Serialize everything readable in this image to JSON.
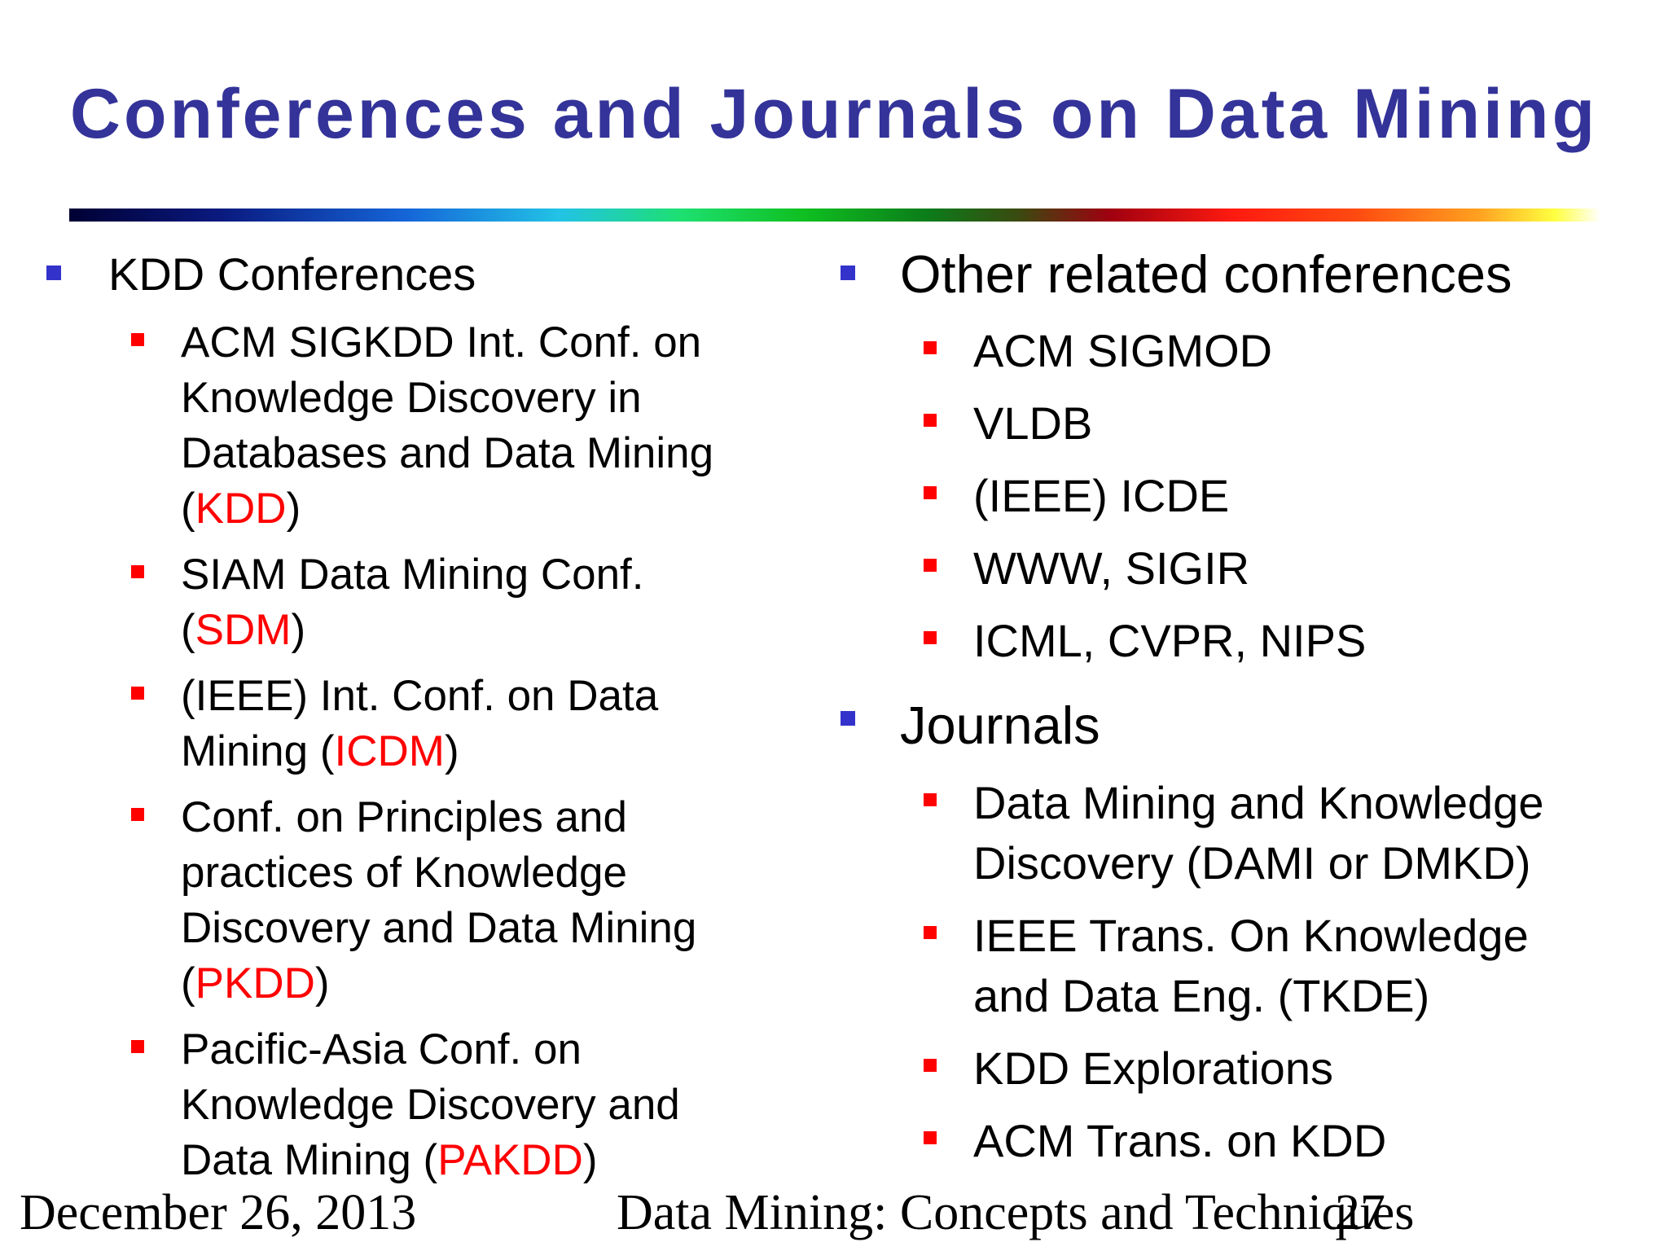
{
  "title": "Conferences and Journals on Data Mining",
  "left": {
    "heading": "KDD Conferences",
    "items": [
      {
        "text": "ACM SIGKDD Int. Conf. on Knowledge Discovery in Databases and Data Mining (",
        "acronym": "KDD",
        "after": ")"
      },
      {
        "text": "SIAM Data Mining Conf. (",
        "acronym": "SDM",
        "after": ")"
      },
      {
        "text": "(IEEE) Int. Conf. on Data Mining (",
        "acronym": "ICDM",
        "after": ")"
      },
      {
        "text": "Conf. on Principles and practices of Knowledge Discovery and Data Mining (",
        "acronym": "PKDD",
        "after": ")"
      },
      {
        "text": "Pacific-Asia Conf. on Knowledge Discovery and Data Mining (",
        "acronym": "PAKDD",
        "after": ")"
      }
    ]
  },
  "right": {
    "sections": [
      {
        "heading": "Other related conferences",
        "items": [
          "ACM SIGMOD",
          "VLDB",
          "(IEEE) ICDE",
          "WWW, SIGIR",
          "ICML, CVPR, NIPS"
        ]
      },
      {
        "heading": "Journals",
        "items": [
          "Data Mining and Knowledge Discovery (DAMI or DMKD)",
          "IEEE Trans. On Knowledge and Data Eng. (TKDE)",
          "KDD Explorations",
          "ACM Trans. on KDD"
        ]
      }
    ]
  },
  "footer": {
    "date": "December 26, 2013",
    "course": "Data Mining: Concepts and Techniques",
    "page": "27"
  }
}
